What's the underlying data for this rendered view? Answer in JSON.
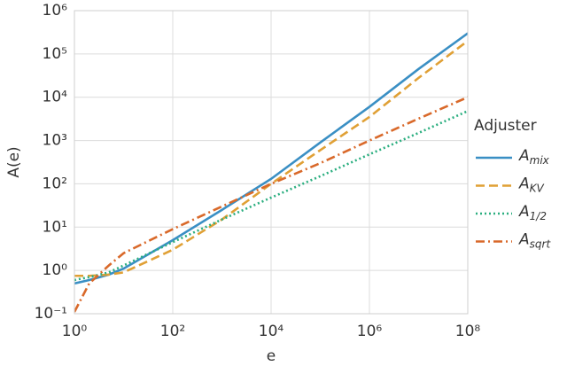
{
  "chart_data": {
    "type": "line",
    "xlabel": "e",
    "ylabel": "A(e)",
    "xscale": "log",
    "yscale": "log",
    "grid": true,
    "legend_title": "Adjuster",
    "legend_position": "right",
    "x": [
      1,
      2,
      5,
      10,
      100,
      1000,
      10000,
      100000,
      1000000,
      10000000,
      100000000
    ],
    "series": [
      {
        "name": "Amix",
        "color": "#3a8fc4",
        "style": "solid",
        "values": [
          0.5,
          0.6,
          0.8,
          1.1,
          5,
          25,
          130,
          900,
          6000,
          45000,
          300000
        ]
      },
      {
        "name": "AKV",
        "color": "#e0a035",
        "style": "dashed",
        "values": [
          0.75,
          0.75,
          0.8,
          0.9,
          3,
          15,
          100,
          600,
          3500,
          28000,
          200000
        ]
      },
      {
        "name": "A1/2",
        "color": "#2aae7f",
        "style": "dotted",
        "values": [
          0.6,
          0.7,
          0.9,
          1.3,
          4.5,
          15,
          48,
          150,
          480,
          1500,
          4800
        ]
      },
      {
        "name": "Asqrt",
        "color": "#d9692a",
        "style": "dashdot",
        "values": [
          0.11,
          0.5,
          1.3,
          2.5,
          9,
          30,
          100,
          300,
          1000,
          3200,
          10000
        ]
      }
    ],
    "xlim": [
      1,
      100000000
    ],
    "ylim": [
      0.1,
      1000000
    ],
    "xticks": [
      {
        "value": 1,
        "label": "10⁰"
      },
      {
        "value": 100,
        "label": "10²"
      },
      {
        "value": 10000,
        "label": "10⁴"
      },
      {
        "value": 1000000,
        "label": "10⁶"
      },
      {
        "value": 100000000,
        "label": "10⁸"
      }
    ],
    "yticks": [
      {
        "value": 0.1,
        "label": "10⁻¹"
      },
      {
        "value": 1,
        "label": "10⁰"
      },
      {
        "value": 10,
        "label": "10¹"
      },
      {
        "value": 100,
        "label": "10²"
      },
      {
        "value": 1000,
        "label": "10³"
      },
      {
        "value": 10000,
        "label": "10⁴"
      },
      {
        "value": 100000,
        "label": "10⁵"
      },
      {
        "value": 1000000,
        "label": "10⁶"
      }
    ]
  }
}
